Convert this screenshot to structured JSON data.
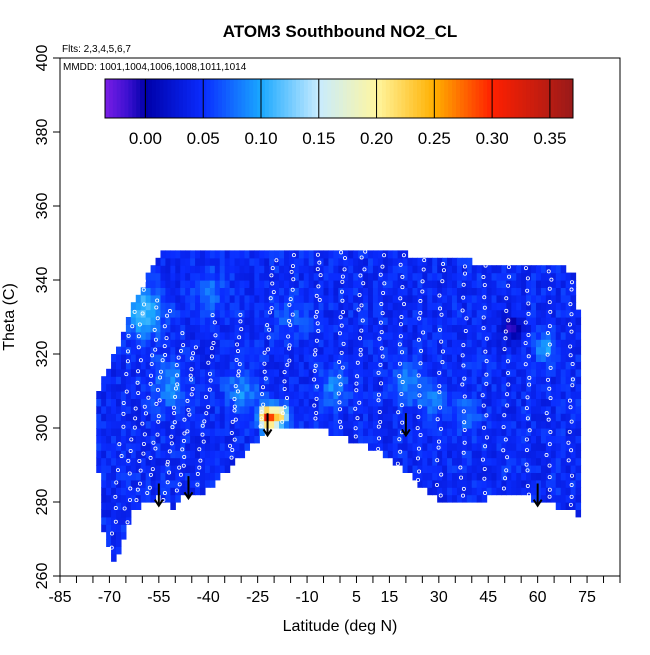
{
  "chart_data": {
    "type": "heatmap",
    "title": "ATOM3 Southbound NO2_CL",
    "subtitle_flights": "Flts: 2,3,4,5,6,7",
    "subtitle_dates": "MMDD: 1001,1004,1006,1008,1011,1014",
    "xlabel": "Latitude (deg N)",
    "ylabel": "Theta (C)",
    "xlim": [
      -85,
      85
    ],
    "ylim": [
      260,
      400
    ],
    "x_tick_labels": [
      "-85",
      "-70",
      "-55",
      "-40",
      "-25",
      "-10",
      "5",
      "15",
      "30",
      "45",
      "60",
      "75"
    ],
    "x_tick_label_values": [
      -85,
      -70,
      -55,
      -40,
      -25,
      -10,
      5,
      15,
      30,
      45,
      60,
      75
    ],
    "x_minor_ticks": [
      -80,
      -75,
      -65,
      -60,
      -50,
      -45,
      -35,
      -30,
      -20,
      -15,
      -5,
      0,
      10,
      20,
      25,
      35,
      40,
      50,
      55,
      65,
      70,
      80,
      85
    ],
    "y_ticks": [
      260,
      280,
      300,
      320,
      340,
      360,
      380,
      400
    ],
    "colorbar": {
      "min": -0.035,
      "max": 0.37,
      "tick_values": [
        0.0,
        0.05,
        0.1,
        0.15,
        0.2,
        0.25,
        0.3,
        0.35
      ],
      "tick_labels": [
        "0.00",
        "0.05",
        "0.10",
        "0.15",
        "0.20",
        "0.25",
        "0.30",
        "0.35"
      ],
      "stops": [
        {
          "value": -0.035,
          "color": "#7a1ee6"
        },
        {
          "value": -0.015,
          "color": "#3b10d0"
        },
        {
          "value": 0.0,
          "color": "#0000a8"
        },
        {
          "value": 0.05,
          "color": "#0a2cff"
        },
        {
          "value": 0.1,
          "color": "#1aa8ff"
        },
        {
          "value": 0.15,
          "color": "#c8ecff"
        },
        {
          "value": 0.2,
          "color": "#fff6a0"
        },
        {
          "value": 0.25,
          "color": "#ffb000"
        },
        {
          "value": 0.3,
          "color": "#ff2000"
        },
        {
          "value": 0.37,
          "color": "#991a1a"
        }
      ]
    },
    "field_base_value": 0.045,
    "domain": {
      "bottom": [
        [
          -74,
          300
        ],
        [
          -73,
          284
        ],
        [
          -72,
          273
        ],
        [
          -70,
          267
        ],
        [
          -68,
          264
        ],
        [
          -66,
          270
        ],
        [
          -63,
          279
        ],
        [
          -58,
          280
        ],
        [
          -55,
          282
        ],
        [
          -50,
          279
        ],
        [
          -48,
          282
        ],
        [
          -45,
          282
        ],
        [
          -40,
          284
        ],
        [
          -37,
          287
        ],
        [
          -32,
          291
        ],
        [
          -27,
          296
        ],
        [
          -22,
          300
        ],
        [
          -18,
          301
        ],
        [
          -10,
          301
        ],
        [
          -2,
          299
        ],
        [
          5,
          297
        ],
        [
          10,
          295
        ],
        [
          15,
          292
        ],
        [
          20,
          289
        ],
        [
          25,
          284
        ],
        [
          30,
          281
        ],
        [
          35,
          280
        ],
        [
          40,
          280
        ],
        [
          45,
          282
        ],
        [
          50,
          283
        ],
        [
          55,
          282
        ],
        [
          60,
          281
        ],
        [
          65,
          280
        ],
        [
          70,
          278
        ],
        [
          73,
          277
        ]
      ],
      "top": [
        [
          73,
          305
        ],
        [
          72,
          340
        ],
        [
          67,
          343
        ],
        [
          62,
          344
        ],
        [
          55,
          344
        ],
        [
          45,
          344
        ],
        [
          35,
          345
        ],
        [
          25,
          346
        ],
        [
          15,
          347
        ],
        [
          5,
          348
        ],
        [
          -5,
          348
        ],
        [
          -15,
          348
        ],
        [
          -25,
          348
        ],
        [
          -35,
          348
        ],
        [
          -45,
          347
        ],
        [
          -50,
          348
        ],
        [
          -55,
          346
        ],
        [
          -57,
          343
        ],
        [
          -60,
          338
        ],
        [
          -64,
          330
        ],
        [
          -68,
          320
        ],
        [
          -71,
          315
        ],
        [
          -74,
          308
        ]
      ]
    },
    "anomalies": [
      {
        "lat": -22,
        "theta": 303,
        "value": 0.31,
        "radius": 2.5
      },
      {
        "lat": -18,
        "theta": 303.5,
        "value": 0.22,
        "radius": 2.2
      },
      {
        "lat": -60,
        "theta": 332,
        "value": 0.11,
        "radius": 6
      },
      {
        "lat": -52,
        "theta": 312,
        "value": 0.09,
        "radius": 5
      },
      {
        "lat": -30,
        "theta": 310,
        "value": 0.085,
        "radius": 5
      },
      {
        "lat": -2,
        "theta": 311,
        "value": 0.085,
        "radius": 4
      },
      {
        "lat": 20,
        "theta": 312,
        "value": 0.09,
        "radius": 4
      },
      {
        "lat": 28,
        "theta": 308,
        "value": 0.085,
        "radius": 4
      },
      {
        "lat": 38,
        "theta": 304,
        "value": 0.08,
        "radius": 4
      },
      {
        "lat": -40,
        "theta": 337,
        "value": 0.075,
        "radius": 5
      },
      {
        "lat": 62,
        "theta": 322,
        "value": 0.1,
        "radius": 3
      },
      {
        "lat": 52,
        "theta": 327,
        "value": -0.01,
        "radius": 3
      },
      {
        "lat": -15,
        "theta": 330,
        "value": 0.07,
        "radius": 5
      }
    ],
    "arrows_lat": [
      -55,
      -46,
      -22,
      20,
      60
    ],
    "arrows_theta": [
      285,
      287,
      304,
      304,
      285
    ],
    "flight_tracks": [
      {
        "lat_start": -62,
        "lat_end": -69,
        "theta_start": 342,
        "theta_end": 268
      },
      {
        "lat_start": -59,
        "lat_end": -65,
        "theta_start": 340,
        "theta_end": 275
      },
      {
        "lat_start": -55,
        "lat_end": -62,
        "theta_start": 335,
        "theta_end": 280
      },
      {
        "lat_start": -52,
        "lat_end": -58,
        "theta_start": 332,
        "theta_end": 282
      },
      {
        "lat_start": -48,
        "lat_end": -53,
        "theta_start": 325,
        "theta_end": 281
      },
      {
        "lat_start": -44,
        "lat_end": -49,
        "theta_start": 322,
        "theta_end": 283
      },
      {
        "lat_start": -38,
        "lat_end": -43,
        "theta_start": 330,
        "theta_end": 285
      },
      {
        "lat_start": -30,
        "lat_end": -33,
        "theta_start": 330,
        "theta_end": 292
      },
      {
        "lat_start": -20,
        "lat_end": -24,
        "theta_start": 346,
        "theta_end": 300
      },
      {
        "lat_start": -14,
        "lat_end": -17,
        "theta_start": 346,
        "theta_end": 302
      },
      {
        "lat_start": -6,
        "lat_end": -8,
        "theta_start": 347,
        "theta_end": 302
      },
      {
        "lat_start": 1,
        "lat_end": 0,
        "theta_start": 348,
        "theta_end": 300
      },
      {
        "lat_start": 7,
        "lat_end": 5,
        "theta_start": 348,
        "theta_end": 298
      },
      {
        "lat_start": 13,
        "lat_end": 12,
        "theta_start": 346,
        "theta_end": 295
      },
      {
        "lat_start": 19,
        "lat_end": 18,
        "theta_start": 346,
        "theta_end": 291
      },
      {
        "lat_start": 25,
        "lat_end": 24,
        "theta_start": 346,
        "theta_end": 286
      },
      {
        "lat_start": 31,
        "lat_end": 30,
        "theta_start": 345,
        "theta_end": 282
      },
      {
        "lat_start": 38,
        "lat_end": 37,
        "theta_start": 344,
        "theta_end": 281
      },
      {
        "lat_start": 44,
        "lat_end": 44,
        "theta_start": 344,
        "theta_end": 283
      },
      {
        "lat_start": 51,
        "lat_end": 50,
        "theta_start": 344,
        "theta_end": 283
      },
      {
        "lat_start": 57,
        "lat_end": 57,
        "theta_start": 343,
        "theta_end": 282
      },
      {
        "lat_start": 64,
        "lat_end": 63,
        "theta_start": 343,
        "theta_end": 281
      },
      {
        "lat_start": 70,
        "lat_end": 70,
        "theta_start": 340,
        "theta_end": 279
      }
    ]
  }
}
